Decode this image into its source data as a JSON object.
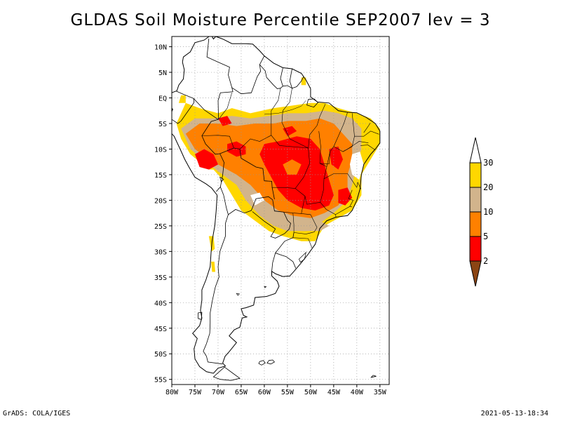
{
  "title": "GLDAS Soil Moisture Percentile SEP2007 lev = 3",
  "footer": {
    "left": "GrADS: COLA/IGES",
    "right": "2021-05-13-18:34"
  },
  "map": {
    "lon_range": [
      -80,
      -33
    ],
    "lat_range": [
      -56,
      12
    ],
    "grid": "dotted",
    "lon_ticks": [
      {
        "lon": -80,
        "label": "80W"
      },
      {
        "lon": -75,
        "label": "75W"
      },
      {
        "lon": -70,
        "label": "70W"
      },
      {
        "lon": -65,
        "label": "65W"
      },
      {
        "lon": -60,
        "label": "60W"
      },
      {
        "lon": -55,
        "label": "55W"
      },
      {
        "lon": -50,
        "label": "50W"
      },
      {
        "lon": -45,
        "label": "45W"
      },
      {
        "lon": -40,
        "label": "40W"
      },
      {
        "lon": -35,
        "label": "35W"
      }
    ],
    "lat_ticks": [
      {
        "lat": 10,
        "label": "10N"
      },
      {
        "lat": 5,
        "label": "5N"
      },
      {
        "lat": 0,
        "label": "EQ"
      },
      {
        "lat": -5,
        "label": "5S"
      },
      {
        "lat": -10,
        "label": "10S"
      },
      {
        "lat": -15,
        "label": "15S"
      },
      {
        "lat": -20,
        "label": "20S"
      },
      {
        "lat": -25,
        "label": "25S"
      },
      {
        "lat": -30,
        "label": "30S"
      },
      {
        "lat": -35,
        "label": "35S"
      },
      {
        "lat": -40,
        "label": "40S"
      },
      {
        "lat": -45,
        "label": "45S"
      },
      {
        "lat": -50,
        "label": "50S"
      },
      {
        "lat": -55,
        "label": "55S"
      }
    ]
  },
  "colorbar": {
    "levels": [
      "2",
      "5",
      "10",
      "20",
      "30"
    ],
    "colors": {
      "below_2": "#8b4513",
      "2_5": "#ff0000",
      "5_10": "#ff8000",
      "10_20": "#d2b48c",
      "20_30": "#ffd700",
      "above_30": "#ffffff"
    }
  }
}
